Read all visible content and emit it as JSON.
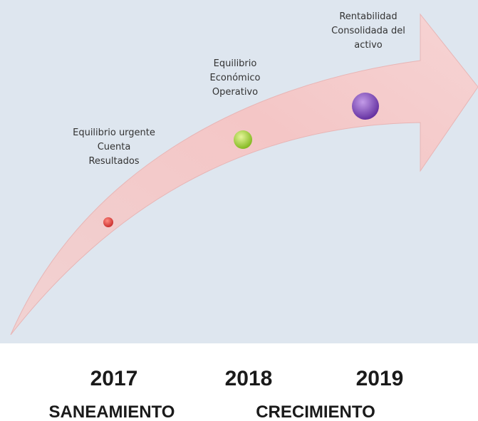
{
  "milestones": [
    {
      "lines": [
        "Equilibrio urgente",
        "Cuenta",
        "Resultados"
      ]
    },
    {
      "lines": [
        "Equilibrio",
        "Económico",
        "Operativo"
      ]
    },
    {
      "lines": [
        "Rentabilidad",
        "Consolidada del",
        "activo"
      ]
    }
  ],
  "years": [
    "2017",
    "2018",
    "2019"
  ],
  "phases": [
    "SANEAMIENTO",
    "CRECIMIENTO"
  ]
}
